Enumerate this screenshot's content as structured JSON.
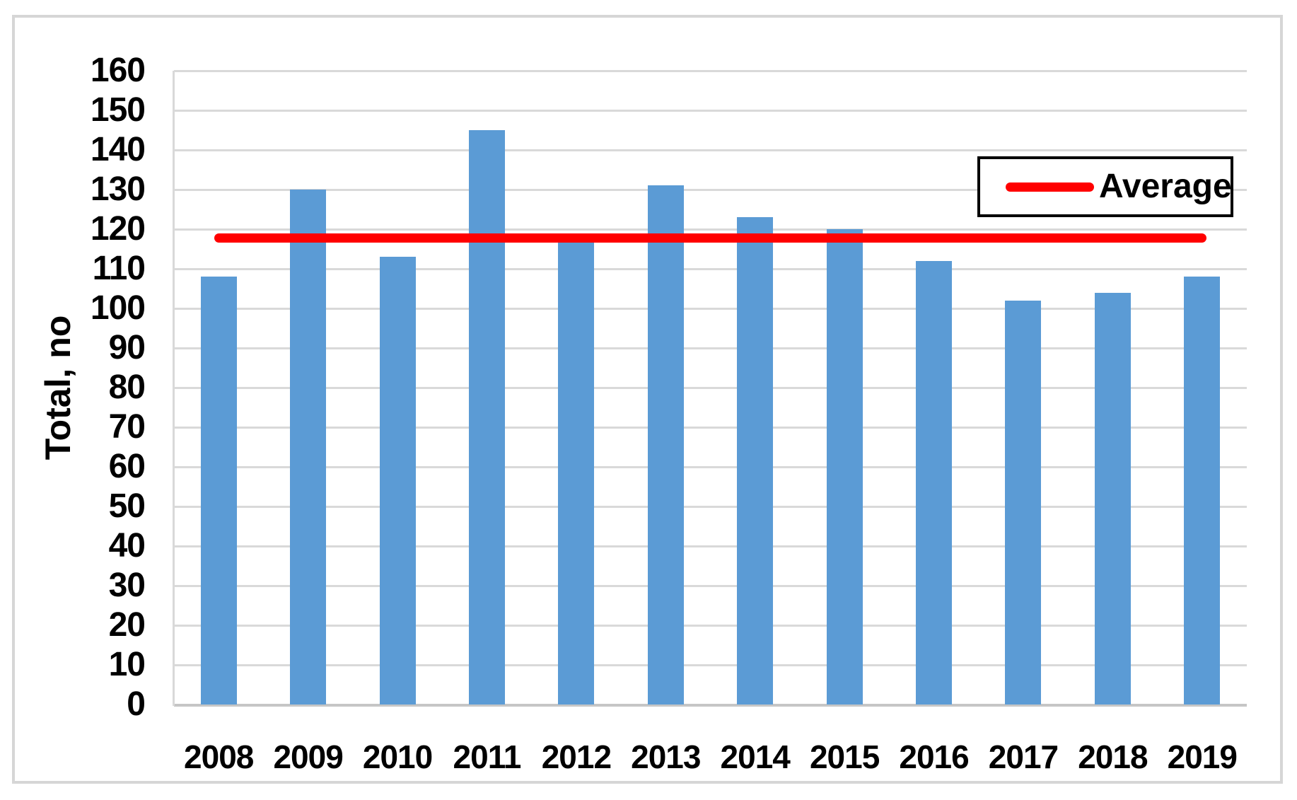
{
  "chart_data": {
    "type": "bar",
    "title": "",
    "categories": [
      "2008",
      "2009",
      "2010",
      "2011",
      "2012",
      "2013",
      "2014",
      "2015",
      "2016",
      "2017",
      "2018",
      "2019"
    ],
    "series": [
      {
        "name": "Total",
        "type": "bar",
        "color": "#5b9bd5",
        "values": [
          108,
          130,
          113,
          145,
          117,
          131,
          123,
          120,
          112,
          102,
          104,
          108
        ]
      },
      {
        "name": "Average",
        "type": "line",
        "color": "#ff0000",
        "value": 117.75
      }
    ],
    "xlabel": "",
    "ylabel": "Total, no",
    "ylim": [
      0,
      160
    ],
    "yticks": [
      0,
      10,
      20,
      30,
      40,
      50,
      60,
      70,
      80,
      90,
      100,
      110,
      120,
      130,
      140,
      150,
      160
    ],
    "grid": "horizontal",
    "gridline_color": "#d9d9d9",
    "legend": {
      "position": "top-right",
      "entries": [
        {
          "label": "Average",
          "color": "#ff0000"
        }
      ]
    }
  }
}
